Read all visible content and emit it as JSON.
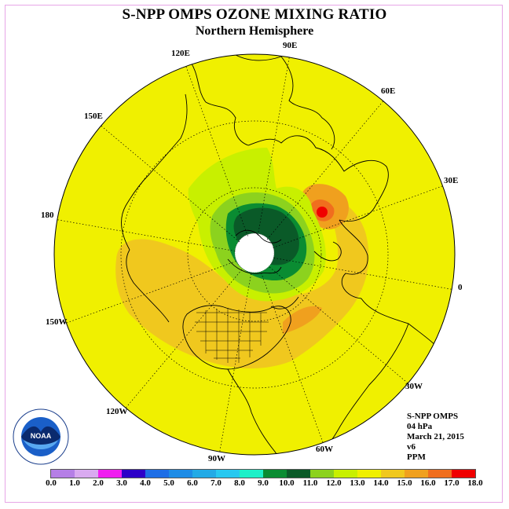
{
  "title": "S-NPP OMPS OZONE MIXING RATIO",
  "subtitle": "Northern Hemisphere",
  "longitude_labels": [
    "90E",
    "60E",
    "30E",
    "0",
    "30W",
    "60W",
    "90W",
    "120W",
    "150W",
    "180",
    "150E",
    "120E"
  ],
  "info": {
    "instrument": "S-NPP OMPS",
    "level": "04 hPa",
    "date": "March 21, 2015",
    "version": "v6",
    "units": "PPM"
  },
  "colorbar": {
    "ticks": [
      "0.0",
      "1.0",
      "2.0",
      "3.0",
      "4.0",
      "5.0",
      "6.0",
      "7.0",
      "8.0",
      "9.0",
      "10.0",
      "11.0",
      "12.0",
      "13.0",
      "14.0",
      "15.0",
      "16.0",
      "17.0",
      "18.0"
    ],
    "colors": [
      "#b57fe6",
      "#d9aaf0",
      "#f01ef0",
      "#2d00c8",
      "#1e6ee6",
      "#1e8ce6",
      "#23aae6",
      "#28c8f0",
      "#1ef0c8",
      "#0a8c32",
      "#0a5a28",
      "#8cd21e",
      "#c8f000",
      "#f0f000",
      "#f0c81e",
      "#f0a01e",
      "#f06e1e",
      "#f00000",
      "#8c5a3c"
    ]
  },
  "logo_text": "NOAA"
}
